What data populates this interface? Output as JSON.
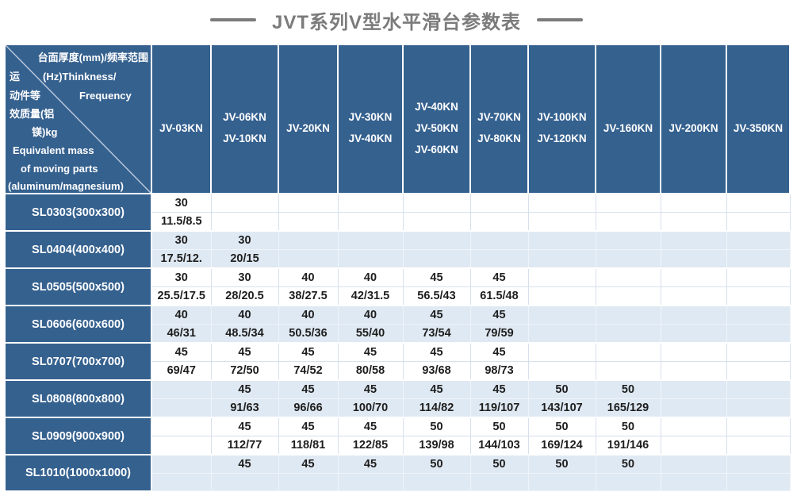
{
  "title": {
    "text": "JVT系列V型水平滑台参数表"
  },
  "colors": {
    "header-blue": "#35618f",
    "alt-row": "#dfe9f3",
    "grid": "#d7e0ec",
    "title-gray": "#7b7b7b",
    "text-dark": "#1e1e1e"
  },
  "corner": {
    "line1": "台面厚度(mm)/频率范围",
    "line2_left": "运",
    "line2_right": "(Hz)Thinkness/",
    "line3_left": "动件等",
    "line3_right": "Frequency",
    "line4": "效质量(铝",
    "line5": "镁)kg",
    "line6": "Equivalent mass",
    "line7": "of moving parts",
    "line8": "(aluminum/magnesium)"
  },
  "columns": [
    [
      "JV-03KN"
    ],
    [
      "JV-06KN",
      "JV-10KN"
    ],
    [
      "JV-20KN"
    ],
    [
      "JV-30KN",
      "JV-40KN"
    ],
    [
      "JV-40KN",
      "JV-50KN",
      "JV-60KN"
    ],
    [
      "JV-70KN",
      "JV-80KN"
    ],
    [
      "JV-100KN",
      "JV-120KN"
    ],
    [
      "JV-160KN"
    ],
    [
      "JV-200KN"
    ],
    [
      "JV-350KN"
    ]
  ],
  "rows": [
    {
      "label": "SL0303(300x300)",
      "thickness": [
        "30",
        "",
        "",
        "",
        "",
        "",
        "",
        "",
        "",
        ""
      ],
      "frequency": [
        "11.5/8.5",
        "",
        "",
        "",
        "",
        "",
        "",
        "",
        "",
        ""
      ]
    },
    {
      "label": "SL0404(400x400)",
      "thickness": [
        "30",
        "30",
        "",
        "",
        "",
        "",
        "",
        "",
        "",
        ""
      ],
      "frequency": [
        "17.5/12.",
        "20/15",
        "",
        "",
        "",
        "",
        "",
        "",
        "",
        ""
      ]
    },
    {
      "label": "SL0505(500x500)",
      "thickness": [
        "30",
        "30",
        "40",
        "40",
        "45",
        "45",
        "",
        "",
        "",
        ""
      ],
      "frequency": [
        "25.5/17.5",
        "28/20.5",
        "38/27.5",
        "42/31.5",
        "56.5/43",
        "61.5/48",
        "",
        "",
        "",
        ""
      ]
    },
    {
      "label": "SL0606(600x600)",
      "thickness": [
        "40",
        "40",
        "40",
        "40",
        "45",
        "45",
        "",
        "",
        "",
        ""
      ],
      "frequency": [
        "46/31",
        "48.5/34",
        "50.5/36",
        "55/40",
        "73/54",
        "79/59",
        "",
        "",
        "",
        ""
      ]
    },
    {
      "label": "SL0707(700x700)",
      "thickness": [
        "45",
        "45",
        "45",
        "45",
        "45",
        "45",
        "",
        "",
        "",
        ""
      ],
      "frequency": [
        "69/47",
        "72/50",
        "74/52",
        "80/58",
        "93/68",
        "98/73",
        "",
        "",
        "",
        ""
      ]
    },
    {
      "label": "SL0808(800x800)",
      "thickness": [
        "",
        "45",
        "45",
        "45",
        "45",
        "45",
        "50",
        "50",
        "",
        ""
      ],
      "frequency": [
        "",
        "91/63",
        "96/66",
        "100/70",
        "114/82",
        "119/107",
        "143/107",
        "165/129",
        "",
        ""
      ]
    },
    {
      "label": "SL0909(900x900)",
      "thickness": [
        "",
        "45",
        "45",
        "45",
        "50",
        "50",
        "50",
        "50",
        "",
        ""
      ],
      "frequency": [
        "",
        "112/77",
        "118/81",
        "122/85",
        "139/98",
        "144/103",
        "169/124",
        "191/146",
        "",
        ""
      ]
    },
    {
      "label": "SL1010(1000x1000)",
      "thickness": [
        "",
        "45",
        "45",
        "45",
        "50",
        "50",
        "50",
        "50",
        "",
        ""
      ],
      "frequency": [
        "",
        "",
        "",
        "",
        "",
        "",
        "",
        "",
        "",
        ""
      ]
    }
  ]
}
